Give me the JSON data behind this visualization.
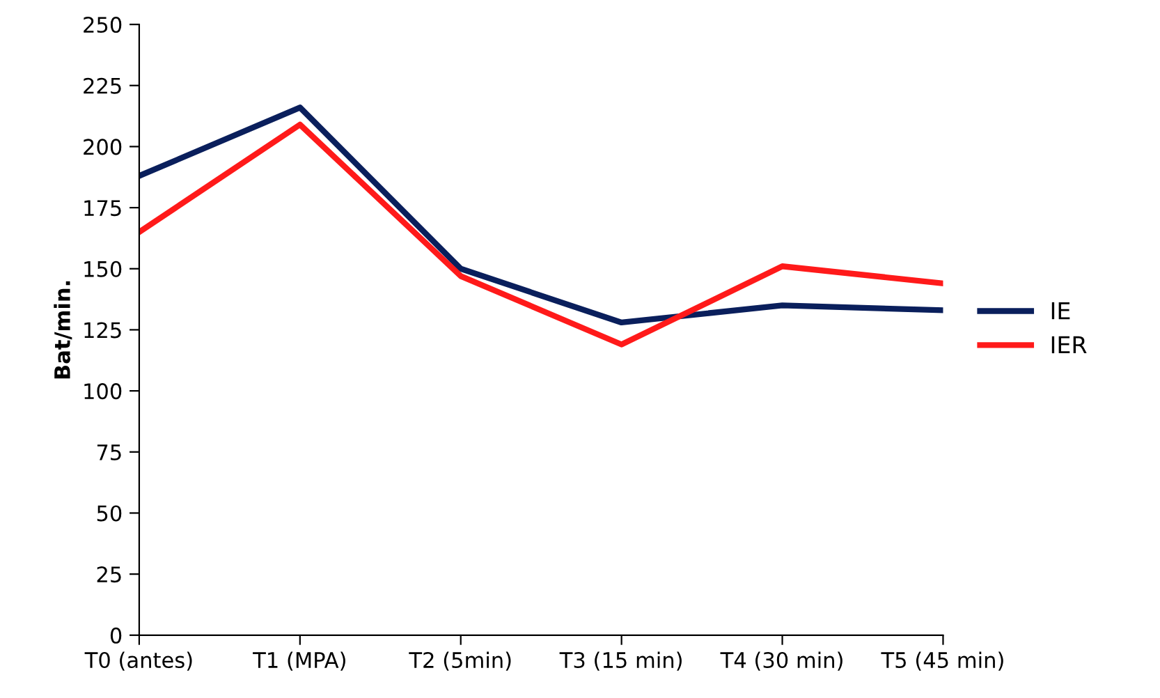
{
  "chart_data": {
    "type": "line",
    "ylabel": "Bat/min.",
    "categories": [
      "T0 (antes)",
      "T1 (MPA)",
      "T2 (5min)",
      "T3 (15 min)",
      "T4 (30 min)",
      "T5 (45 min)"
    ],
    "series": [
      {
        "name": "IE",
        "color": "#0a1f5c",
        "values": [
          188,
          216,
          150,
          128,
          135,
          133
        ]
      },
      {
        "name": "IER",
        "color": "#ff1a1a",
        "values": [
          165,
          209,
          147,
          119,
          151,
          144
        ]
      }
    ],
    "ylim": [
      0,
      250
    ],
    "yticks": [
      0,
      25,
      50,
      75,
      100,
      125,
      150,
      175,
      200,
      225,
      250
    ],
    "grid": false,
    "legend": "right",
    "marker": "none",
    "line_style": "solid"
  }
}
